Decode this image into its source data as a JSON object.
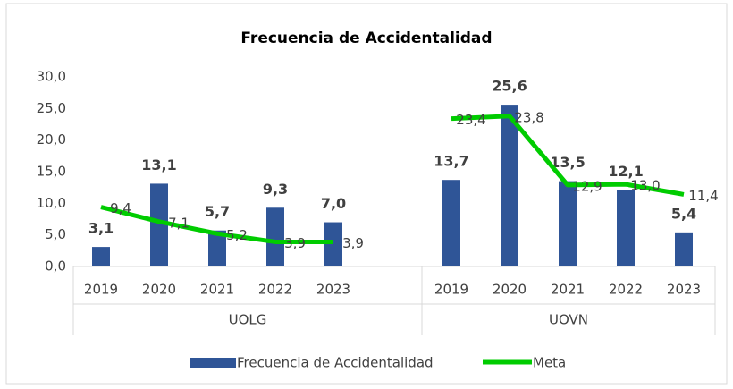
{
  "chart_data": {
    "type": "bar",
    "title": "Frecuencia de Accidentalidad",
    "groups": [
      "UOLG",
      "UOVN"
    ],
    "categories": [
      "2019",
      "2020",
      "2021",
      "2022",
      "2023",
      "2019",
      "2020",
      "2021",
      "2022",
      "2023"
    ],
    "ylim": [
      0,
      30
    ],
    "yticks": [
      {
        "value": 0,
        "label": "0,0"
      },
      {
        "value": 5,
        "label": "5,0"
      },
      {
        "value": 10,
        "label": "10,0"
      },
      {
        "value": 15,
        "label": "15,0"
      },
      {
        "value": 20,
        "label": "20,0"
      },
      {
        "value": 25,
        "label": "25,0"
      },
      {
        "value": 30,
        "label": "30,0"
      }
    ],
    "series": [
      {
        "name": "Frecuencia de Accidentalidad",
        "type": "bar",
        "color": "#2f5597",
        "values": [
          3.1,
          13.1,
          5.7,
          9.3,
          7.0,
          13.7,
          25.6,
          13.5,
          12.1,
          5.4
        ],
        "value_labels": [
          "3,1",
          "13,1",
          "5,7",
          "9,3",
          "7,0",
          "13,7",
          "25,6",
          "13,5",
          "12,1",
          "5,4"
        ]
      },
      {
        "name": "Meta",
        "type": "line",
        "color": "#00cc00",
        "values": [
          9.4,
          7.1,
          5.2,
          3.9,
          3.9,
          23.4,
          23.8,
          12.9,
          13.0,
          11.4
        ],
        "value_labels": [
          "9,4",
          "7,1",
          "5,2",
          "3,9",
          "3,9",
          "23,4",
          "23,8",
          "12,9",
          "13,0",
          "11,4"
        ]
      }
    ]
  }
}
